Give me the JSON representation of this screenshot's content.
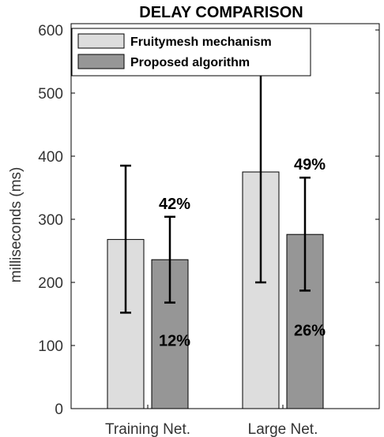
{
  "chart_data": {
    "type": "bar",
    "title": "DELAY COMPARISON",
    "xlabel": "",
    "ylabel": "milliseconds (ms)",
    "categories": [
      "Training Net.",
      "Large Net."
    ],
    "ylim": [
      0,
      610
    ],
    "yticks": [
      0,
      100,
      200,
      300,
      400,
      500,
      600
    ],
    "series": [
      {
        "name": "Fruitymesh mechanism",
        "color": "#dddddd",
        "values": [
          268,
          375
        ],
        "error_low": [
          152,
          200
        ],
        "error_high": [
          385,
          550
        ]
      },
      {
        "name": "Proposed algorithm",
        "color": "#969696",
        "values": [
          236,
          276
        ],
        "error_low": [
          168,
          187
        ],
        "error_high": [
          304,
          366
        ]
      }
    ],
    "annotations": [
      {
        "text": "42%",
        "category": 0,
        "series": 1,
        "position": "above-errorbar"
      },
      {
        "text": "12%",
        "category": 0,
        "series": 1,
        "position": "inside-bar"
      },
      {
        "text": "49%",
        "category": 1,
        "series": 1,
        "position": "above-errorbar"
      },
      {
        "text": "26%",
        "category": 1,
        "series": 1,
        "position": "inside-bar"
      }
    ],
    "legend": "top-left",
    "grid": false
  }
}
